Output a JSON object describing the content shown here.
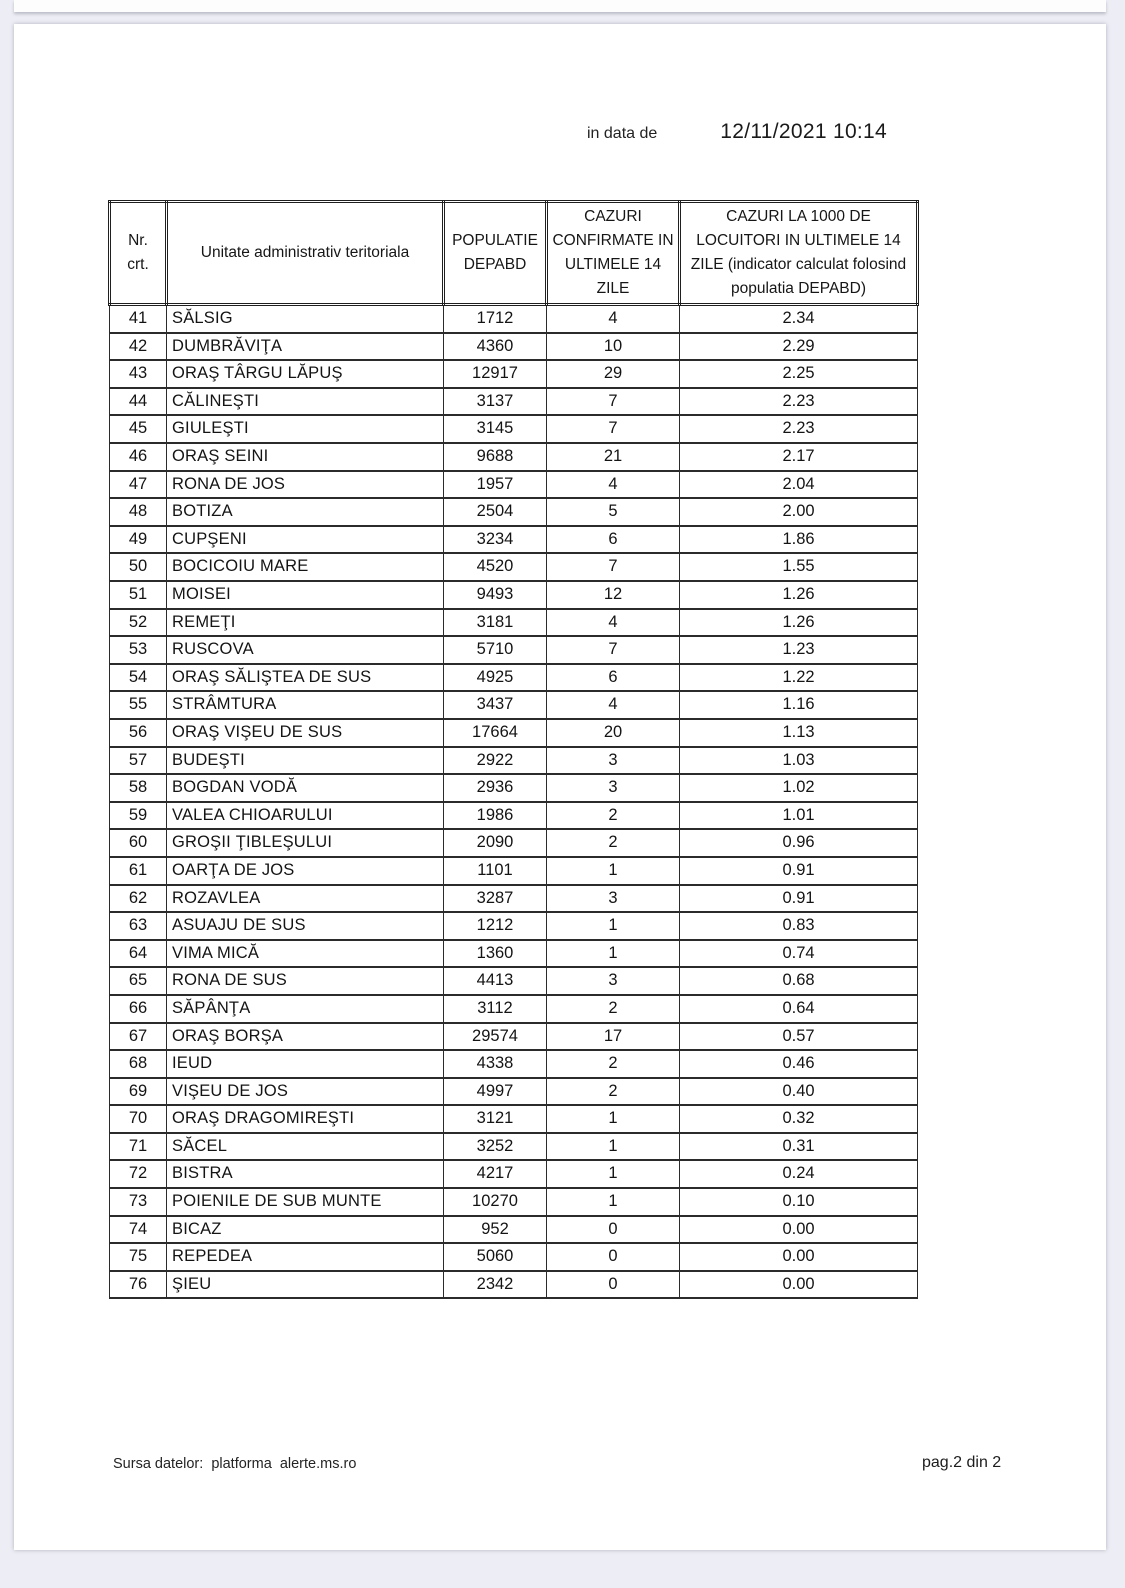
{
  "header": {
    "date_label": "in data de",
    "date_value": "12/11/2021 10:14"
  },
  "table": {
    "columns": [
      "Nr.\ncrt.",
      "Unitate administrativ teritoriala",
      "POPULATIE DEPABD",
      "CAZURI CONFIRMATE IN ULTIMELE 14 ZILE",
      "CAZURI LA 1000 DE LOCUITORI IN ULTIMELE 14 ZILE (indicator calculat folosind populatia DEPABD)"
    ],
    "rows": [
      [
        "41",
        "SĂLSIG",
        "1712",
        "4",
        "2.34"
      ],
      [
        "42",
        "DUMBRĂVIŢA",
        "4360",
        "10",
        "2.29"
      ],
      [
        "43",
        "ORAŞ TÂRGU LĂPUŞ",
        "12917",
        "29",
        "2.25"
      ],
      [
        "44",
        "CĂLINEŞTI",
        "3137",
        "7",
        "2.23"
      ],
      [
        "45",
        "GIULEŞTI",
        "3145",
        "7",
        "2.23"
      ],
      [
        "46",
        "ORAŞ SEINI",
        "9688",
        "21",
        "2.17"
      ],
      [
        "47",
        "RONA DE JOS",
        "1957",
        "4",
        "2.04"
      ],
      [
        "48",
        "BOTIZA",
        "2504",
        "5",
        "2.00"
      ],
      [
        "49",
        "CUPŞENI",
        "3234",
        "6",
        "1.86"
      ],
      [
        "50",
        "BOCICOIU MARE",
        "4520",
        "7",
        "1.55"
      ],
      [
        "51",
        "MOISEI",
        "9493",
        "12",
        "1.26"
      ],
      [
        "52",
        "REMEŢI",
        "3181",
        "4",
        "1.26"
      ],
      [
        "53",
        "RUSCOVA",
        "5710",
        "7",
        "1.23"
      ],
      [
        "54",
        "ORAŞ SĂLIŞTEA DE SUS",
        "4925",
        "6",
        "1.22"
      ],
      [
        "55",
        "STRÂMTURA",
        "3437",
        "4",
        "1.16"
      ],
      [
        "56",
        "ORAŞ VIŞEU DE SUS",
        "17664",
        "20",
        "1.13"
      ],
      [
        "57",
        "BUDEŞTI",
        "2922",
        "3",
        "1.03"
      ],
      [
        "58",
        "BOGDAN VODĂ",
        "2936",
        "3",
        "1.02"
      ],
      [
        "59",
        "VALEA CHIOARULUI",
        "1986",
        "2",
        "1.01"
      ],
      [
        "60",
        "GROŞII ŢIBLEŞULUI",
        "2090",
        "2",
        "0.96"
      ],
      [
        "61",
        "OARŢA DE JOS",
        "1101",
        "1",
        "0.91"
      ],
      [
        "62",
        "ROZAVLEA",
        "3287",
        "3",
        "0.91"
      ],
      [
        "63",
        "ASUAJU DE SUS",
        "1212",
        "1",
        "0.83"
      ],
      [
        "64",
        "VIMA MICĂ",
        "1360",
        "1",
        "0.74"
      ],
      [
        "65",
        "RONA DE SUS",
        "4413",
        "3",
        "0.68"
      ],
      [
        "66",
        "SĂPÂNŢA",
        "3112",
        "2",
        "0.64"
      ],
      [
        "67",
        "ORAŞ BORŞA",
        "29574",
        "17",
        "0.57"
      ],
      [
        "68",
        "IEUD",
        "4338",
        "2",
        "0.46"
      ],
      [
        "69",
        "VIŞEU DE JOS",
        "4997",
        "2",
        "0.40"
      ],
      [
        "70",
        "ORAŞ DRAGOMIREŞTI",
        "3121",
        "1",
        "0.32"
      ],
      [
        "71",
        "SĂCEL",
        "3252",
        "1",
        "0.31"
      ],
      [
        "72",
        "BISTRA",
        "4217",
        "1",
        "0.24"
      ],
      [
        "73",
        "POIENILE DE SUB MUNTE",
        "10270",
        "1",
        "0.10"
      ],
      [
        "74",
        "BICAZ",
        "952",
        "0",
        "0.00"
      ],
      [
        "75",
        "REPEDEA",
        "5060",
        "0",
        "0.00"
      ],
      [
        "76",
        "ŞIEU",
        "2342",
        "0",
        "0.00"
      ]
    ]
  },
  "footer": {
    "source": "Sursa datelor:  platforma  alerte.ms.ro",
    "page": "pag.2 din 2"
  }
}
